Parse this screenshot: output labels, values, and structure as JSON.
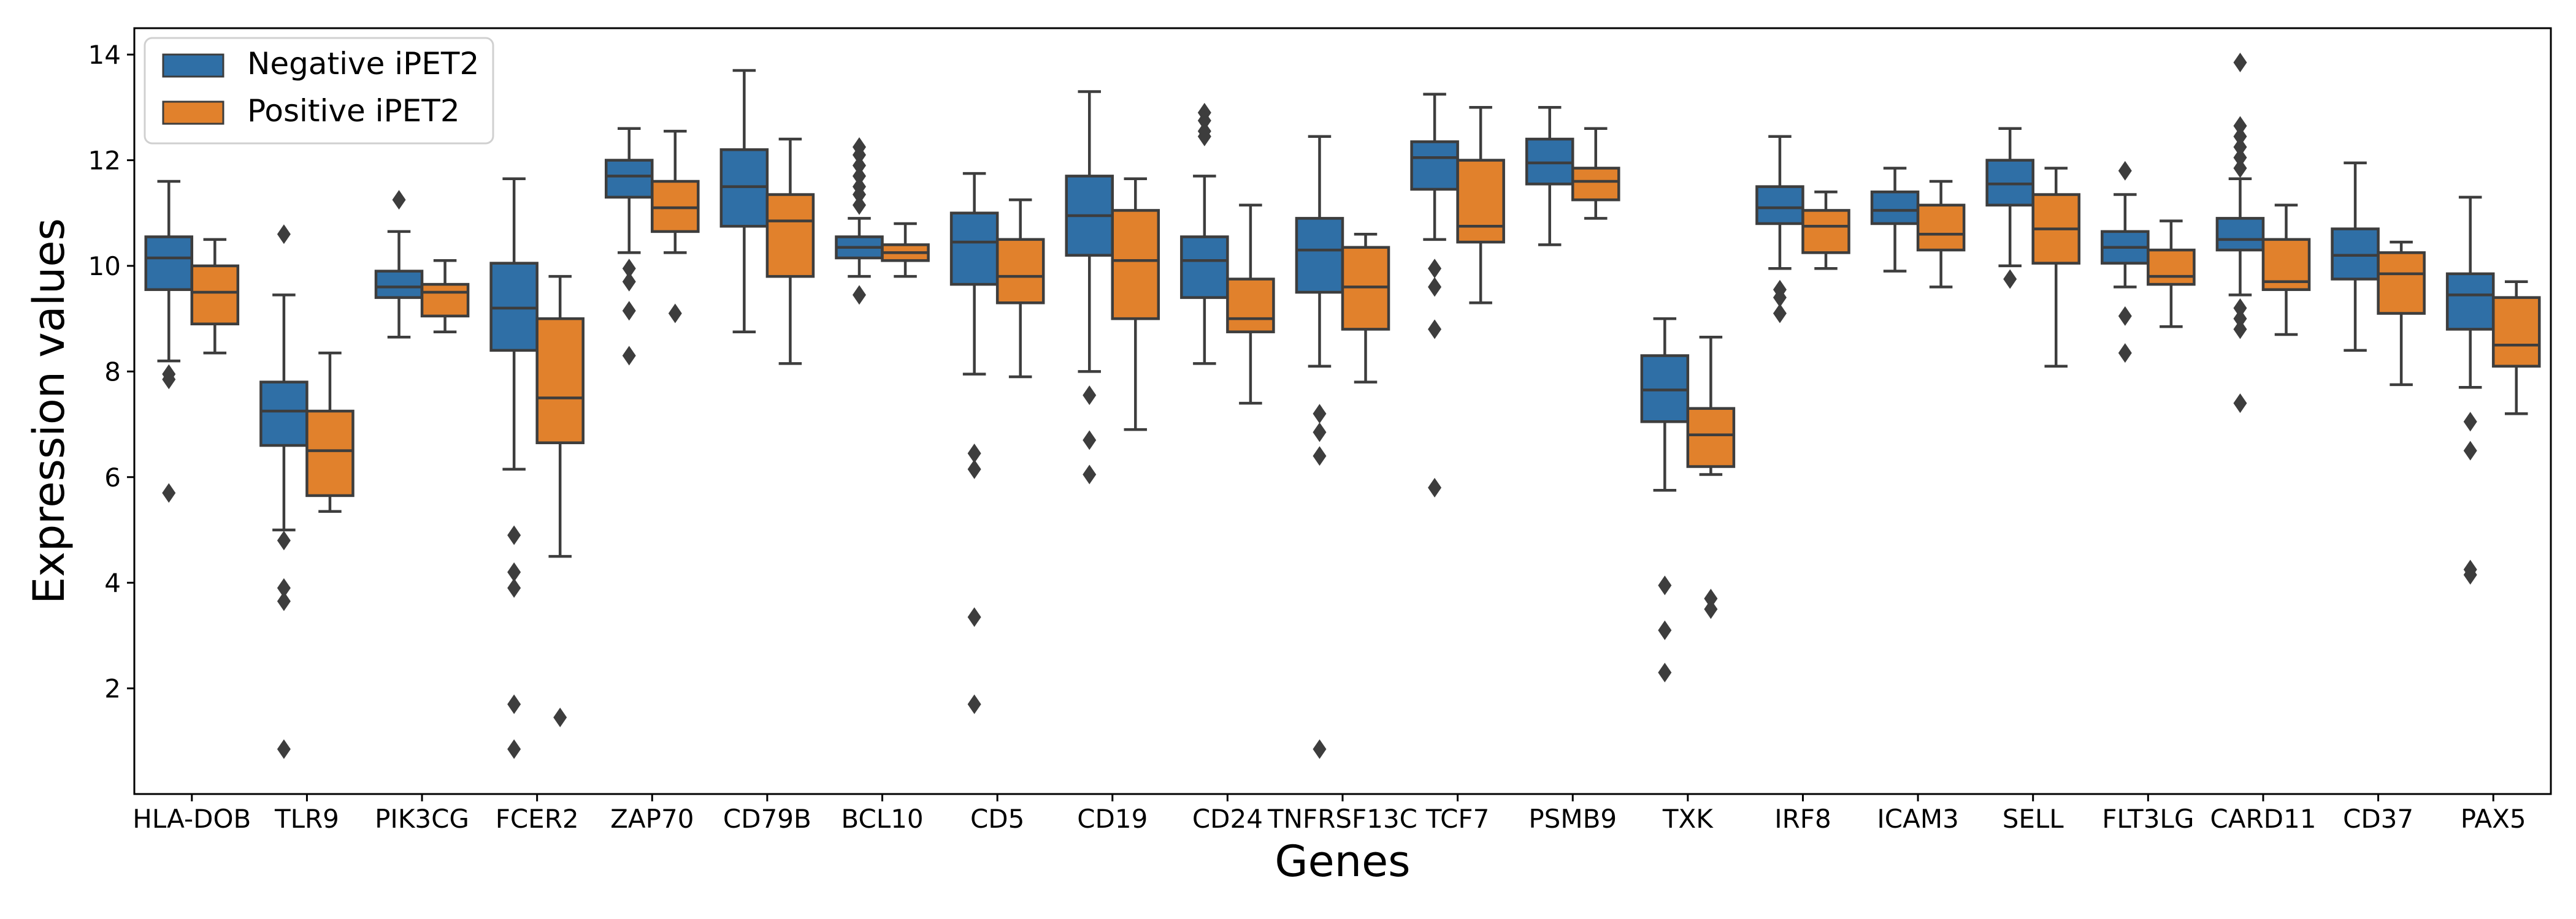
{
  "chart_data": {
    "type": "box",
    "title": "",
    "xlabel": "Genes",
    "ylabel": "Expression values",
    "ylim": [
      0,
      14.5
    ],
    "yticks": [
      2,
      4,
      6,
      8,
      10,
      12,
      14
    ],
    "grid": false,
    "legend": {
      "position": "top-left"
    },
    "categories": [
      "HLA-DOB",
      "TLR9",
      "PIK3CG",
      "FCER2",
      "ZAP70",
      "CD79B",
      "BCL10",
      "CD5",
      "CD19",
      "CD24",
      "TNFRSF13C",
      "TCF7",
      "PSMB9",
      "TXK",
      "IRF8",
      "ICAM3",
      "SELL",
      "FLT3LG",
      "CARD11",
      "CD37",
      "PAX5"
    ],
    "series": [
      {
        "name": "Negative iPET2",
        "color": "#2f6fa6",
        "boxes": [
          {
            "whislo": 8.2,
            "q1": 9.55,
            "med": 10.15,
            "q3": 10.55,
            "whishi": 11.6,
            "fliers": [
              7.95,
              7.85,
              5.7
            ]
          },
          {
            "whislo": 5.0,
            "q1": 6.6,
            "med": 7.25,
            "q3": 7.8,
            "whishi": 9.45,
            "fliers": [
              10.6,
              4.8,
              3.9,
              3.65,
              0.85
            ]
          },
          {
            "whislo": 8.65,
            "q1": 9.4,
            "med": 9.6,
            "q3": 9.9,
            "whishi": 10.65,
            "fliers": [
              11.25
            ]
          },
          {
            "whislo": 6.15,
            "q1": 8.4,
            "med": 9.2,
            "q3": 10.05,
            "whishi": 11.65,
            "fliers": [
              4.9,
              4.2,
              3.9,
              1.7,
              0.85
            ]
          },
          {
            "whislo": 10.25,
            "q1": 11.3,
            "med": 11.7,
            "q3": 12.0,
            "whishi": 12.6,
            "fliers": [
              9.95,
              9.7,
              9.15,
              8.3
            ]
          },
          {
            "whislo": 8.75,
            "q1": 10.75,
            "med": 11.5,
            "q3": 12.2,
            "whishi": 13.7,
            "fliers": []
          },
          {
            "whislo": 9.8,
            "q1": 10.15,
            "med": 10.35,
            "q3": 10.55,
            "whishi": 10.9,
            "fliers": [
              12.25,
              12.1,
              11.9,
              11.7,
              11.5,
              11.35,
              11.15,
              9.45
            ]
          },
          {
            "whislo": 7.95,
            "q1": 9.65,
            "med": 10.45,
            "q3": 11.0,
            "whishi": 11.75,
            "fliers": [
              6.45,
              6.15,
              3.35,
              1.7
            ]
          },
          {
            "whislo": 8.0,
            "q1": 10.2,
            "med": 10.95,
            "q3": 11.7,
            "whishi": 13.3,
            "fliers": [
              7.55,
              6.7,
              6.05
            ]
          },
          {
            "whislo": 8.15,
            "q1": 9.4,
            "med": 10.1,
            "q3": 10.55,
            "whishi": 11.7,
            "fliers": [
              12.9,
              12.75,
              12.55,
              12.45
            ]
          },
          {
            "whislo": 8.1,
            "q1": 9.5,
            "med": 10.3,
            "q3": 10.9,
            "whishi": 12.45,
            "fliers": [
              7.2,
              6.85,
              6.4,
              0.85
            ]
          },
          {
            "whislo": 10.5,
            "q1": 11.45,
            "med": 12.05,
            "q3": 12.35,
            "whishi": 13.25,
            "fliers": [
              9.95,
              9.6,
              8.8,
              5.8
            ]
          },
          {
            "whislo": 10.4,
            "q1": 11.55,
            "med": 11.95,
            "q3": 12.4,
            "whishi": 13.0,
            "fliers": []
          },
          {
            "whislo": 5.75,
            "q1": 7.05,
            "med": 7.65,
            "q3": 8.3,
            "whishi": 9.0,
            "fliers": [
              3.95,
              3.1,
              2.3
            ]
          },
          {
            "whislo": 9.95,
            "q1": 10.8,
            "med": 11.1,
            "q3": 11.5,
            "whishi": 12.45,
            "fliers": [
              9.55,
              9.4,
              9.1
            ]
          },
          {
            "whislo": 9.9,
            "q1": 10.8,
            "med": 11.05,
            "q3": 11.4,
            "whishi": 11.85,
            "fliers": []
          },
          {
            "whislo": 10.0,
            "q1": 11.15,
            "med": 11.55,
            "q3": 12.0,
            "whishi": 12.6,
            "fliers": [
              9.75
            ]
          },
          {
            "whislo": 9.6,
            "q1": 10.05,
            "med": 10.35,
            "q3": 10.65,
            "whishi": 11.35,
            "fliers": [
              11.8,
              9.05,
              8.35
            ]
          },
          {
            "whislo": 9.45,
            "q1": 10.3,
            "med": 10.5,
            "q3": 10.9,
            "whishi": 11.65,
            "fliers": [
              13.85,
              12.65,
              12.45,
              12.25,
              12.05,
              11.85,
              9.2,
              9.0,
              8.8,
              7.4
            ]
          },
          {
            "whislo": 8.4,
            "q1": 9.75,
            "med": 10.2,
            "q3": 10.7,
            "whishi": 11.95,
            "fliers": []
          },
          {
            "whislo": 7.7,
            "q1": 8.8,
            "med": 9.45,
            "q3": 9.85,
            "whishi": 11.3,
            "fliers": [
              7.05,
              6.5,
              4.25,
              4.15
            ]
          }
        ]
      },
      {
        "name": "Positive iPET2",
        "color": "#e1812c",
        "boxes": [
          {
            "whislo": 8.35,
            "q1": 8.9,
            "med": 9.5,
            "q3": 10.0,
            "whishi": 10.5,
            "fliers": []
          },
          {
            "whislo": 5.35,
            "q1": 5.65,
            "med": 6.5,
            "q3": 7.25,
            "whishi": 8.35,
            "fliers": []
          },
          {
            "whislo": 8.75,
            "q1": 9.05,
            "med": 9.5,
            "q3": 9.65,
            "whishi": 10.1,
            "fliers": []
          },
          {
            "whislo": 4.5,
            "q1": 6.65,
            "med": 7.5,
            "q3": 9.0,
            "whishi": 9.8,
            "fliers": [
              1.45
            ]
          },
          {
            "whislo": 10.25,
            "q1": 10.65,
            "med": 11.1,
            "q3": 11.6,
            "whishi": 12.55,
            "fliers": [
              9.1
            ]
          },
          {
            "whislo": 8.15,
            "q1": 9.8,
            "med": 10.85,
            "q3": 11.35,
            "whishi": 12.4,
            "fliers": []
          },
          {
            "whislo": 9.8,
            "q1": 10.1,
            "med": 10.25,
            "q3": 10.4,
            "whishi": 10.8,
            "fliers": []
          },
          {
            "whislo": 7.9,
            "q1": 9.3,
            "med": 9.8,
            "q3": 10.5,
            "whishi": 11.25,
            "fliers": []
          },
          {
            "whislo": 6.9,
            "q1": 9.0,
            "med": 10.1,
            "q3": 11.05,
            "whishi": 11.65,
            "fliers": []
          },
          {
            "whislo": 7.4,
            "q1": 8.75,
            "med": 9.0,
            "q3": 9.75,
            "whishi": 11.15,
            "fliers": []
          },
          {
            "whislo": 7.8,
            "q1": 8.8,
            "med": 9.6,
            "q3": 10.35,
            "whishi": 10.6,
            "fliers": []
          },
          {
            "whislo": 9.3,
            "q1": 10.45,
            "med": 10.75,
            "q3": 12.0,
            "whishi": 13.0,
            "fliers": []
          },
          {
            "whislo": 10.9,
            "q1": 11.25,
            "med": 11.6,
            "q3": 11.85,
            "whishi": 12.6,
            "fliers": []
          },
          {
            "whislo": 6.05,
            "q1": 6.2,
            "med": 6.8,
            "q3": 7.3,
            "whishi": 8.65,
            "fliers": [
              3.7,
              3.5
            ]
          },
          {
            "whislo": 9.95,
            "q1": 10.25,
            "med": 10.75,
            "q3": 11.05,
            "whishi": 11.4,
            "fliers": []
          },
          {
            "whislo": 9.6,
            "q1": 10.3,
            "med": 10.6,
            "q3": 11.15,
            "whishi": 11.6,
            "fliers": []
          },
          {
            "whislo": 8.1,
            "q1": 10.05,
            "med": 10.7,
            "q3": 11.35,
            "whishi": 11.85,
            "fliers": []
          },
          {
            "whislo": 8.85,
            "q1": 9.65,
            "med": 9.8,
            "q3": 10.3,
            "whishi": 10.85,
            "fliers": []
          },
          {
            "whislo": 8.7,
            "q1": 9.55,
            "med": 9.7,
            "q3": 10.5,
            "whishi": 11.15,
            "fliers": []
          },
          {
            "whislo": 7.75,
            "q1": 9.1,
            "med": 9.85,
            "q3": 10.25,
            "whishi": 10.45,
            "fliers": []
          },
          {
            "whislo": 7.2,
            "q1": 8.1,
            "med": 8.5,
            "q3": 9.4,
            "whishi": 9.7,
            "fliers": []
          }
        ]
      }
    ]
  }
}
